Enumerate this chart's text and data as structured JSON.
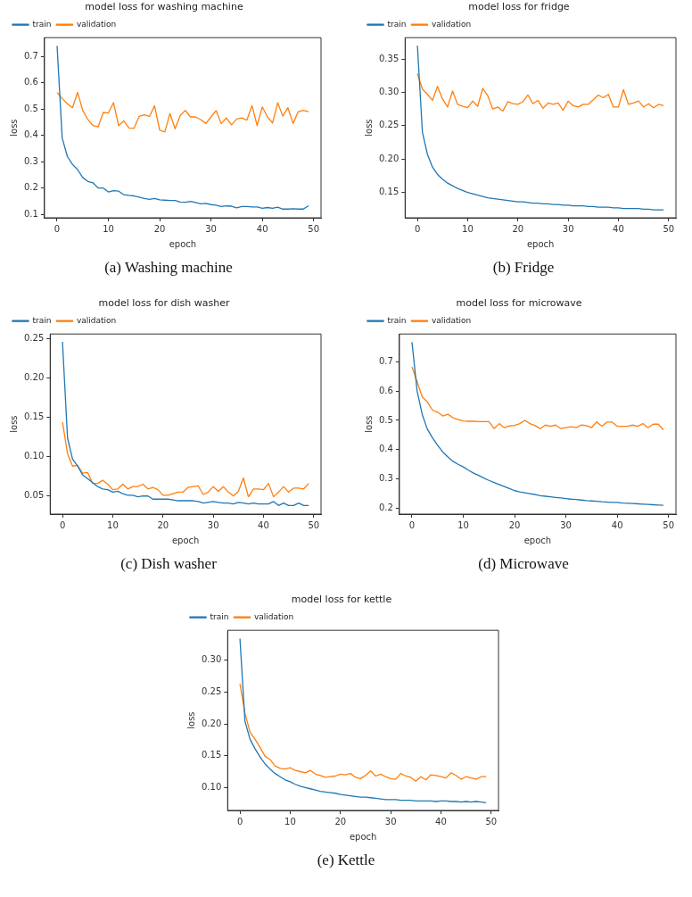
{
  "chart_data": [
    {
      "type": "line",
      "title": "model loss for washing machine",
      "xlabel": "epoch",
      "ylabel": "loss",
      "legend": "top left",
      "annotations": [
        "(a) Washing machine"
      ],
      "x": [
        0,
        1,
        2,
        3,
        4,
        5,
        6,
        7,
        8,
        9,
        10,
        11,
        12,
        13,
        14,
        15,
        16,
        17,
        18,
        19,
        20,
        21,
        22,
        23,
        24,
        25,
        26,
        27,
        28,
        29,
        30,
        31,
        32,
        33,
        34,
        35,
        36,
        37,
        38,
        39,
        40,
        41,
        42,
        43,
        44,
        45,
        46,
        47,
        48,
        49
      ],
      "xlim": [
        -2.45,
        51.45
      ],
      "xticks": [
        0,
        10,
        20,
        30,
        40,
        50
      ],
      "ylim": [
        0.087,
        0.771
      ],
      "yticks": [
        0.1,
        0.2,
        0.3,
        0.4,
        0.5,
        0.6,
        0.7
      ],
      "series": [
        {
          "name": "train",
          "color": "#1f77b4",
          "values": [
            0.74,
            0.39,
            0.32,
            0.29,
            0.27,
            0.24,
            0.225,
            0.22,
            0.2,
            0.2,
            0.185,
            0.19,
            0.188,
            0.175,
            0.172,
            0.17,
            0.165,
            0.16,
            0.157,
            0.16,
            0.155,
            0.154,
            0.153,
            0.153,
            0.147,
            0.146,
            0.149,
            0.145,
            0.14,
            0.142,
            0.137,
            0.135,
            0.13,
            0.132,
            0.131,
            0.125,
            0.13,
            0.13,
            0.128,
            0.128,
            0.123,
            0.126,
            0.123,
            0.127,
            0.12,
            0.12,
            0.121,
            0.12,
            0.12,
            0.133
          ]
        },
        {
          "name": "validation",
          "color": "#ff7f0e",
          "values": [
            0.563,
            0.54,
            0.52,
            0.505,
            0.563,
            0.495,
            0.46,
            0.437,
            0.432,
            0.487,
            0.485,
            0.524,
            0.437,
            0.455,
            0.428,
            0.427,
            0.472,
            0.478,
            0.472,
            0.512,
            0.42,
            0.413,
            0.483,
            0.425,
            0.475,
            0.495,
            0.47,
            0.47,
            0.46,
            0.445,
            0.47,
            0.494,
            0.445,
            0.466,
            0.44,
            0.462,
            0.466,
            0.458,
            0.513,
            0.437,
            0.508,
            0.47,
            0.447,
            0.524,
            0.473,
            0.505,
            0.445,
            0.49,
            0.495,
            0.49
          ]
        }
      ]
    },
    {
      "type": "line",
      "title": "model loss for fridge",
      "xlabel": "epoch",
      "ylabel": "loss",
      "legend": "top left",
      "annotations": [
        "(b) Fridge"
      ],
      "x": [
        0,
        1,
        2,
        3,
        4,
        5,
        6,
        7,
        8,
        9,
        10,
        11,
        12,
        13,
        14,
        15,
        16,
        17,
        18,
        19,
        20,
        21,
        22,
        23,
        24,
        25,
        26,
        27,
        28,
        29,
        30,
        31,
        32,
        33,
        34,
        35,
        36,
        37,
        38,
        39,
        40,
        41,
        42,
        43,
        44,
        45,
        46,
        47,
        48,
        49
      ],
      "xlim": [
        -2.45,
        51.45
      ],
      "xticks": [
        0,
        10,
        20,
        30,
        40,
        50
      ],
      "ylim": [
        0.112,
        0.382
      ],
      "yticks": [
        0.15,
        {
          "value": 0.2,
          "label": "0.20"
        },
        0.25,
        {
          "value": 0.3,
          "label": "0.30"
        },
        0.35
      ],
      "series": [
        {
          "name": "train",
          "color": "#1f77b4",
          "values": [
            0.37,
            0.24,
            0.207,
            0.188,
            0.177,
            0.17,
            0.164,
            0.16,
            0.156,
            0.153,
            0.15,
            0.148,
            0.146,
            0.144,
            0.142,
            0.141,
            0.14,
            0.139,
            0.138,
            0.137,
            0.136,
            0.136,
            0.135,
            0.134,
            0.134,
            0.133,
            0.133,
            0.132,
            0.132,
            0.131,
            0.131,
            0.13,
            0.13,
            0.13,
            0.129,
            0.129,
            0.128,
            0.128,
            0.128,
            0.127,
            0.127,
            0.126,
            0.126,
            0.126,
            0.126,
            0.125,
            0.125,
            0.124,
            0.124,
            0.124
          ]
        },
        {
          "name": "validation",
          "color": "#ff7f0e",
          "values": [
            0.328,
            0.305,
            0.297,
            0.288,
            0.309,
            0.29,
            0.278,
            0.302,
            0.282,
            0.279,
            0.277,
            0.287,
            0.279,
            0.306,
            0.295,
            0.275,
            0.278,
            0.272,
            0.286,
            0.283,
            0.282,
            0.286,
            0.296,
            0.283,
            0.288,
            0.276,
            0.284,
            0.282,
            0.284,
            0.273,
            0.287,
            0.28,
            0.278,
            0.282,
            0.282,
            0.289,
            0.296,
            0.292,
            0.297,
            0.278,
            0.278,
            0.304,
            0.282,
            0.284,
            0.287,
            0.278,
            0.283,
            0.277,
            0.282,
            0.28
          ]
        }
      ]
    },
    {
      "type": "line",
      "title": "model loss for dish washer",
      "xlabel": "epoch",
      "ylabel": "loss",
      "legend": "top left",
      "annotations": [
        "(c) Dish washer"
      ],
      "x": [
        0,
        1,
        2,
        3,
        4,
        5,
        6,
        7,
        8,
        9,
        10,
        11,
        12,
        13,
        14,
        15,
        16,
        17,
        18,
        19,
        20,
        21,
        22,
        23,
        24,
        25,
        26,
        27,
        28,
        29,
        30,
        31,
        32,
        33,
        34,
        35,
        36,
        37,
        38,
        39,
        40,
        41,
        42,
        43,
        44,
        45,
        46,
        47,
        48,
        49
      ],
      "xlim": [
        -2.45,
        51.45
      ],
      "xticks": [
        0,
        10,
        20,
        30,
        40,
        50
      ],
      "ylim": [
        0.027,
        0.256
      ],
      "yticks": [
        0.05,
        {
          "value": 0.1,
          "label": "0.10"
        },
        0.15,
        {
          "value": 0.2,
          "label": "0.20"
        },
        0.25
      ],
      "series": [
        {
          "name": "train",
          "color": "#1f77b4",
          "values": [
            0.246,
            0.124,
            0.097,
            0.088,
            0.077,
            0.072,
            0.067,
            0.062,
            0.059,
            0.058,
            0.055,
            0.056,
            0.053,
            0.051,
            0.051,
            0.049,
            0.05,
            0.05,
            0.046,
            0.046,
            0.046,
            0.046,
            0.045,
            0.044,
            0.044,
            0.044,
            0.044,
            0.043,
            0.041,
            0.042,
            0.043,
            0.042,
            0.041,
            0.041,
            0.04,
            0.042,
            0.041,
            0.04,
            0.041,
            0.04,
            0.04,
            0.04,
            0.043,
            0.038,
            0.041,
            0.038,
            0.038,
            0.041,
            0.038,
            0.038
          ]
        },
        {
          "name": "validation",
          "color": "#ff7f0e",
          "values": [
            0.144,
            0.104,
            0.088,
            0.089,
            0.079,
            0.08,
            0.066,
            0.066,
            0.07,
            0.065,
            0.058,
            0.059,
            0.065,
            0.059,
            0.062,
            0.062,
            0.065,
            0.059,
            0.061,
            0.058,
            0.051,
            0.051,
            0.053,
            0.055,
            0.055,
            0.061,
            0.062,
            0.063,
            0.052,
            0.055,
            0.062,
            0.056,
            0.062,
            0.055,
            0.05,
            0.056,
            0.073,
            0.049,
            0.059,
            0.059,
            0.058,
            0.066,
            0.049,
            0.055,
            0.062,
            0.055,
            0.06,
            0.06,
            0.059,
            0.066
          ]
        }
      ]
    },
    {
      "type": "line",
      "title": "model loss for microwave",
      "xlabel": "epoch",
      "ylabel": "loss",
      "legend": "top left",
      "annotations": [
        "(d) Microwave"
      ],
      "x": [
        0,
        1,
        2,
        3,
        4,
        5,
        6,
        7,
        8,
        9,
        10,
        11,
        12,
        13,
        14,
        15,
        16,
        17,
        18,
        19,
        20,
        21,
        22,
        23,
        24,
        25,
        26,
        27,
        28,
        29,
        30,
        31,
        32,
        33,
        34,
        35,
        36,
        37,
        38,
        39,
        40,
        41,
        42,
        43,
        44,
        45,
        46,
        47,
        48,
        49
      ],
      "xlim": [
        -2.45,
        51.45
      ],
      "xticks": [
        0,
        10,
        20,
        30,
        40,
        50
      ],
      "ylim": [
        0.18,
        0.795
      ],
      "yticks": [
        0.2,
        0.3,
        0.4,
        0.5,
        0.6,
        0.7
      ],
      "series": [
        {
          "name": "train",
          "color": "#1f77b4",
          "values": [
            0.767,
            0.6,
            0.52,
            0.47,
            0.44,
            0.415,
            0.392,
            0.375,
            0.36,
            0.35,
            0.341,
            0.33,
            0.32,
            0.312,
            0.303,
            0.295,
            0.288,
            0.281,
            0.274,
            0.267,
            0.26,
            0.256,
            0.253,
            0.25,
            0.247,
            0.243,
            0.241,
            0.239,
            0.237,
            0.235,
            0.233,
            0.231,
            0.23,
            0.228,
            0.226,
            0.225,
            0.224,
            0.222,
            0.221,
            0.22,
            0.22,
            0.218,
            0.217,
            0.216,
            0.215,
            0.214,
            0.213,
            0.212,
            0.211,
            0.21
          ]
        },
        {
          "name": "validation",
          "color": "#ff7f0e",
          "values": [
            0.683,
            0.632,
            0.58,
            0.563,
            0.535,
            0.528,
            0.515,
            0.521,
            0.509,
            0.503,
            0.498,
            0.497,
            0.497,
            0.496,
            0.496,
            0.496,
            0.472,
            0.489,
            0.475,
            0.481,
            0.483,
            0.489,
            0.5,
            0.489,
            0.482,
            0.472,
            0.484,
            0.48,
            0.484,
            0.472,
            0.475,
            0.478,
            0.475,
            0.484,
            0.482,
            0.475,
            0.495,
            0.48,
            0.494,
            0.494,
            0.48,
            0.48,
            0.48,
            0.484,
            0.48,
            0.489,
            0.475,
            0.487,
            0.487,
            0.468
          ]
        }
      ]
    },
    {
      "type": "line",
      "title": "model loss for kettle",
      "xlabel": "epoch",
      "ylabel": "loss",
      "legend": "top left",
      "annotations": [
        "(e) Kettle"
      ],
      "x": [
        0,
        1,
        2,
        3,
        4,
        5,
        6,
        7,
        8,
        9,
        10,
        11,
        12,
        13,
        14,
        15,
        16,
        17,
        18,
        19,
        20,
        21,
        22,
        23,
        24,
        25,
        26,
        27,
        28,
        29,
        30,
        31,
        32,
        33,
        34,
        35,
        36,
        37,
        38,
        39,
        40,
        41,
        42,
        43,
        44,
        45,
        46,
        47,
        48,
        49
      ],
      "xlim": [
        -2.45,
        51.45
      ],
      "xticks": [
        0,
        10,
        20,
        30,
        40,
        50
      ],
      "ylim": [
        0.064,
        0.347
      ],
      "yticks": [
        {
          "value": 0.1,
          "label": "0.10"
        },
        0.15,
        {
          "value": 0.2,
          "label": "0.20"
        },
        0.25,
        {
          "value": 0.3,
          "label": "0.30"
        }
      ],
      "series": [
        {
          "name": "train",
          "color": "#1f77b4",
          "values": [
            0.334,
            0.204,
            0.176,
            0.161,
            0.148,
            0.137,
            0.129,
            0.122,
            0.117,
            0.112,
            0.109,
            0.105,
            0.102,
            0.1,
            0.098,
            0.096,
            0.094,
            0.093,
            0.092,
            0.091,
            0.089,
            0.088,
            0.087,
            0.086,
            0.085,
            0.085,
            0.084,
            0.083,
            0.082,
            0.081,
            0.081,
            0.081,
            0.08,
            0.08,
            0.08,
            0.079,
            0.079,
            0.079,
            0.079,
            0.078,
            0.079,
            0.079,
            0.078,
            0.078,
            0.077,
            0.078,
            0.077,
            0.078,
            0.077,
            0.076
          ]
        },
        {
          "name": "validation",
          "color": "#ff7f0e",
          "values": [
            0.263,
            0.217,
            0.187,
            0.176,
            0.163,
            0.149,
            0.144,
            0.134,
            0.13,
            0.129,
            0.131,
            0.127,
            0.125,
            0.123,
            0.127,
            0.121,
            0.119,
            0.116,
            0.117,
            0.118,
            0.121,
            0.12,
            0.122,
            0.116,
            0.114,
            0.119,
            0.126,
            0.118,
            0.121,
            0.117,
            0.114,
            0.113,
            0.122,
            0.118,
            0.116,
            0.11,
            0.117,
            0.112,
            0.12,
            0.119,
            0.117,
            0.115,
            0.123,
            0.119,
            0.113,
            0.117,
            0.115,
            0.113,
            0.117,
            0.117
          ]
        }
      ]
    }
  ]
}
